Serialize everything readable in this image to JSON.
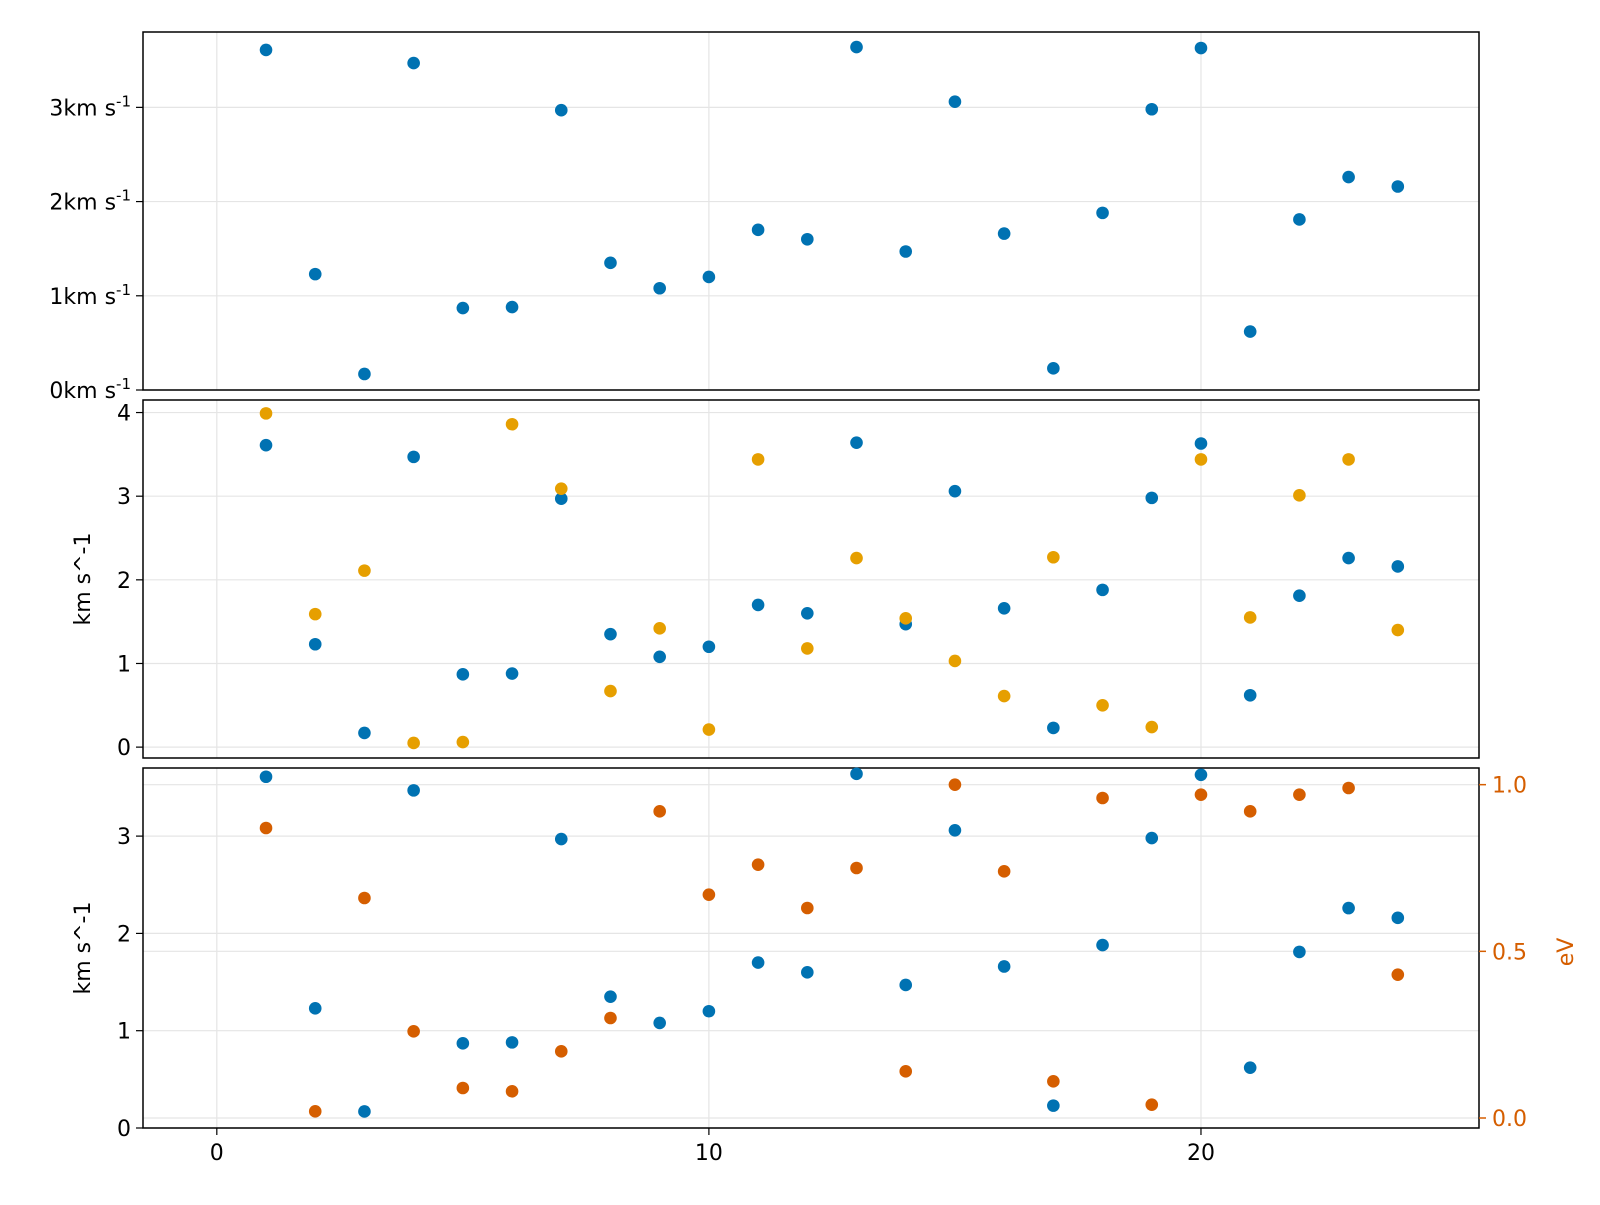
{
  "colors": {
    "blue": "#0072b2",
    "orange": "#e69f00",
    "vermillion": "#d55e00"
  },
  "chart_data": [
    {
      "type": "scatter",
      "xlim": [
        -1.5,
        25.65
      ],
      "ylim": [
        0,
        3.8
      ],
      "grid": true,
      "yticks": [
        0,
        1,
        2,
        3
      ],
      "ytick_labels": [
        "0km s-1",
        "1km s-1",
        "2km s-1",
        "3km s-1"
      ],
      "xticks": [
        10,
        20
      ],
      "show_x_tick_labels": false,
      "ylabel": "",
      "series": [
        {
          "color": "#0072b2",
          "x": [
            1,
            2,
            3,
            4,
            5,
            6,
            7,
            8,
            9,
            10,
            11,
            12,
            13,
            14,
            15,
            16,
            17,
            18,
            19,
            20,
            21,
            22,
            23,
            24
          ],
          "y": [
            3.61,
            1.23,
            0.17,
            3.47,
            0.87,
            0.88,
            2.97,
            1.35,
            1.08,
            1.2,
            1.7,
            1.6,
            3.64,
            1.47,
            3.06,
            1.66,
            0.23,
            1.88,
            2.98,
            3.63,
            0.62,
            1.81,
            2.26,
            2.16
          ]
        }
      ]
    },
    {
      "type": "scatter",
      "xlim": [
        -1.5,
        25.65
      ],
      "ylim": [
        -0.13,
        4.15
      ],
      "grid": true,
      "yticks": [
        0,
        1,
        2,
        3,
        4
      ],
      "ytick_labels": [
        "0",
        "1",
        "2",
        "3",
        "4"
      ],
      "xticks": [
        10,
        20
      ],
      "show_x_tick_labels": false,
      "ylabel": "km s^-1",
      "series": [
        {
          "color": "#0072b2",
          "x": [
            1,
            2,
            3,
            4,
            5,
            6,
            7,
            8,
            9,
            10,
            11,
            12,
            13,
            14,
            15,
            16,
            17,
            18,
            19,
            20,
            21,
            22,
            23,
            24
          ],
          "y": [
            3.61,
            1.23,
            0.17,
            3.47,
            0.87,
            0.88,
            2.97,
            1.35,
            1.08,
            1.2,
            1.7,
            1.6,
            3.64,
            1.47,
            3.06,
            1.66,
            0.23,
            1.88,
            2.98,
            3.63,
            0.62,
            1.81,
            2.26,
            2.16
          ]
        },
        {
          "color": "#e69f00",
          "x": [
            1,
            2,
            3,
            4,
            5,
            6,
            7,
            8,
            9,
            10,
            11,
            12,
            13,
            14,
            15,
            16,
            17,
            18,
            19,
            20,
            21,
            22,
            23,
            24
          ],
          "y": [
            3.99,
            1.59,
            2.11,
            0.05,
            0.06,
            3.86,
            3.09,
            0.67,
            1.42,
            0.21,
            3.44,
            1.18,
            2.26,
            1.54,
            1.03,
            0.61,
            2.27,
            0.5,
            0.24,
            3.44,
            1.55,
            3.01,
            3.44,
            1.4
          ]
        }
      ]
    },
    {
      "type": "scatter",
      "xlim": [
        -1.5,
        25.65
      ],
      "ylim": [
        0,
        3.7
      ],
      "y2lim": [
        -0.03,
        1.05
      ],
      "grid": true,
      "yticks": [
        0,
        1,
        2,
        3
      ],
      "ytick_labels": [
        "0",
        "1",
        "2",
        "3"
      ],
      "y2ticks": [
        0,
        0.5,
        1
      ],
      "y2tick_labels": [
        "0.0",
        "0.5",
        "1.0"
      ],
      "xticks": [
        0,
        10,
        20
      ],
      "xtick_labels": [
        "0",
        "10",
        "20"
      ],
      "show_x_tick_labels": true,
      "ylabel": "km s^-1",
      "y2label": "eV",
      "series": [
        {
          "color": "#0072b2",
          "axis": "left",
          "x": [
            1,
            2,
            3,
            4,
            5,
            6,
            7,
            8,
            9,
            10,
            11,
            12,
            13,
            14,
            15,
            16,
            17,
            18,
            19,
            20,
            21,
            22,
            23,
            24
          ],
          "y": [
            3.61,
            1.23,
            0.17,
            3.47,
            0.87,
            0.88,
            2.97,
            1.35,
            1.08,
            1.2,
            1.7,
            1.6,
            3.64,
            1.47,
            3.06,
            1.66,
            0.23,
            1.88,
            2.98,
            3.63,
            0.62,
            1.81,
            2.26,
            2.16
          ]
        },
        {
          "color": "#d55e00",
          "axis": "right",
          "x": [
            1,
            2,
            3,
            4,
            5,
            6,
            7,
            8,
            9,
            10,
            11,
            12,
            13,
            14,
            15,
            16,
            17,
            18,
            19,
            20,
            21,
            22,
            23,
            24
          ],
          "y": [
            0.87,
            0.02,
            0.66,
            0.26,
            0.09,
            0.08,
            0.2,
            0.3,
            0.92,
            0.67,
            0.76,
            0.63,
            0.75,
            0.14,
            1.0,
            0.74,
            0.11,
            0.96,
            0.04,
            0.97,
            0.92,
            0.97,
            0.99,
            0.43
          ]
        }
      ]
    }
  ]
}
